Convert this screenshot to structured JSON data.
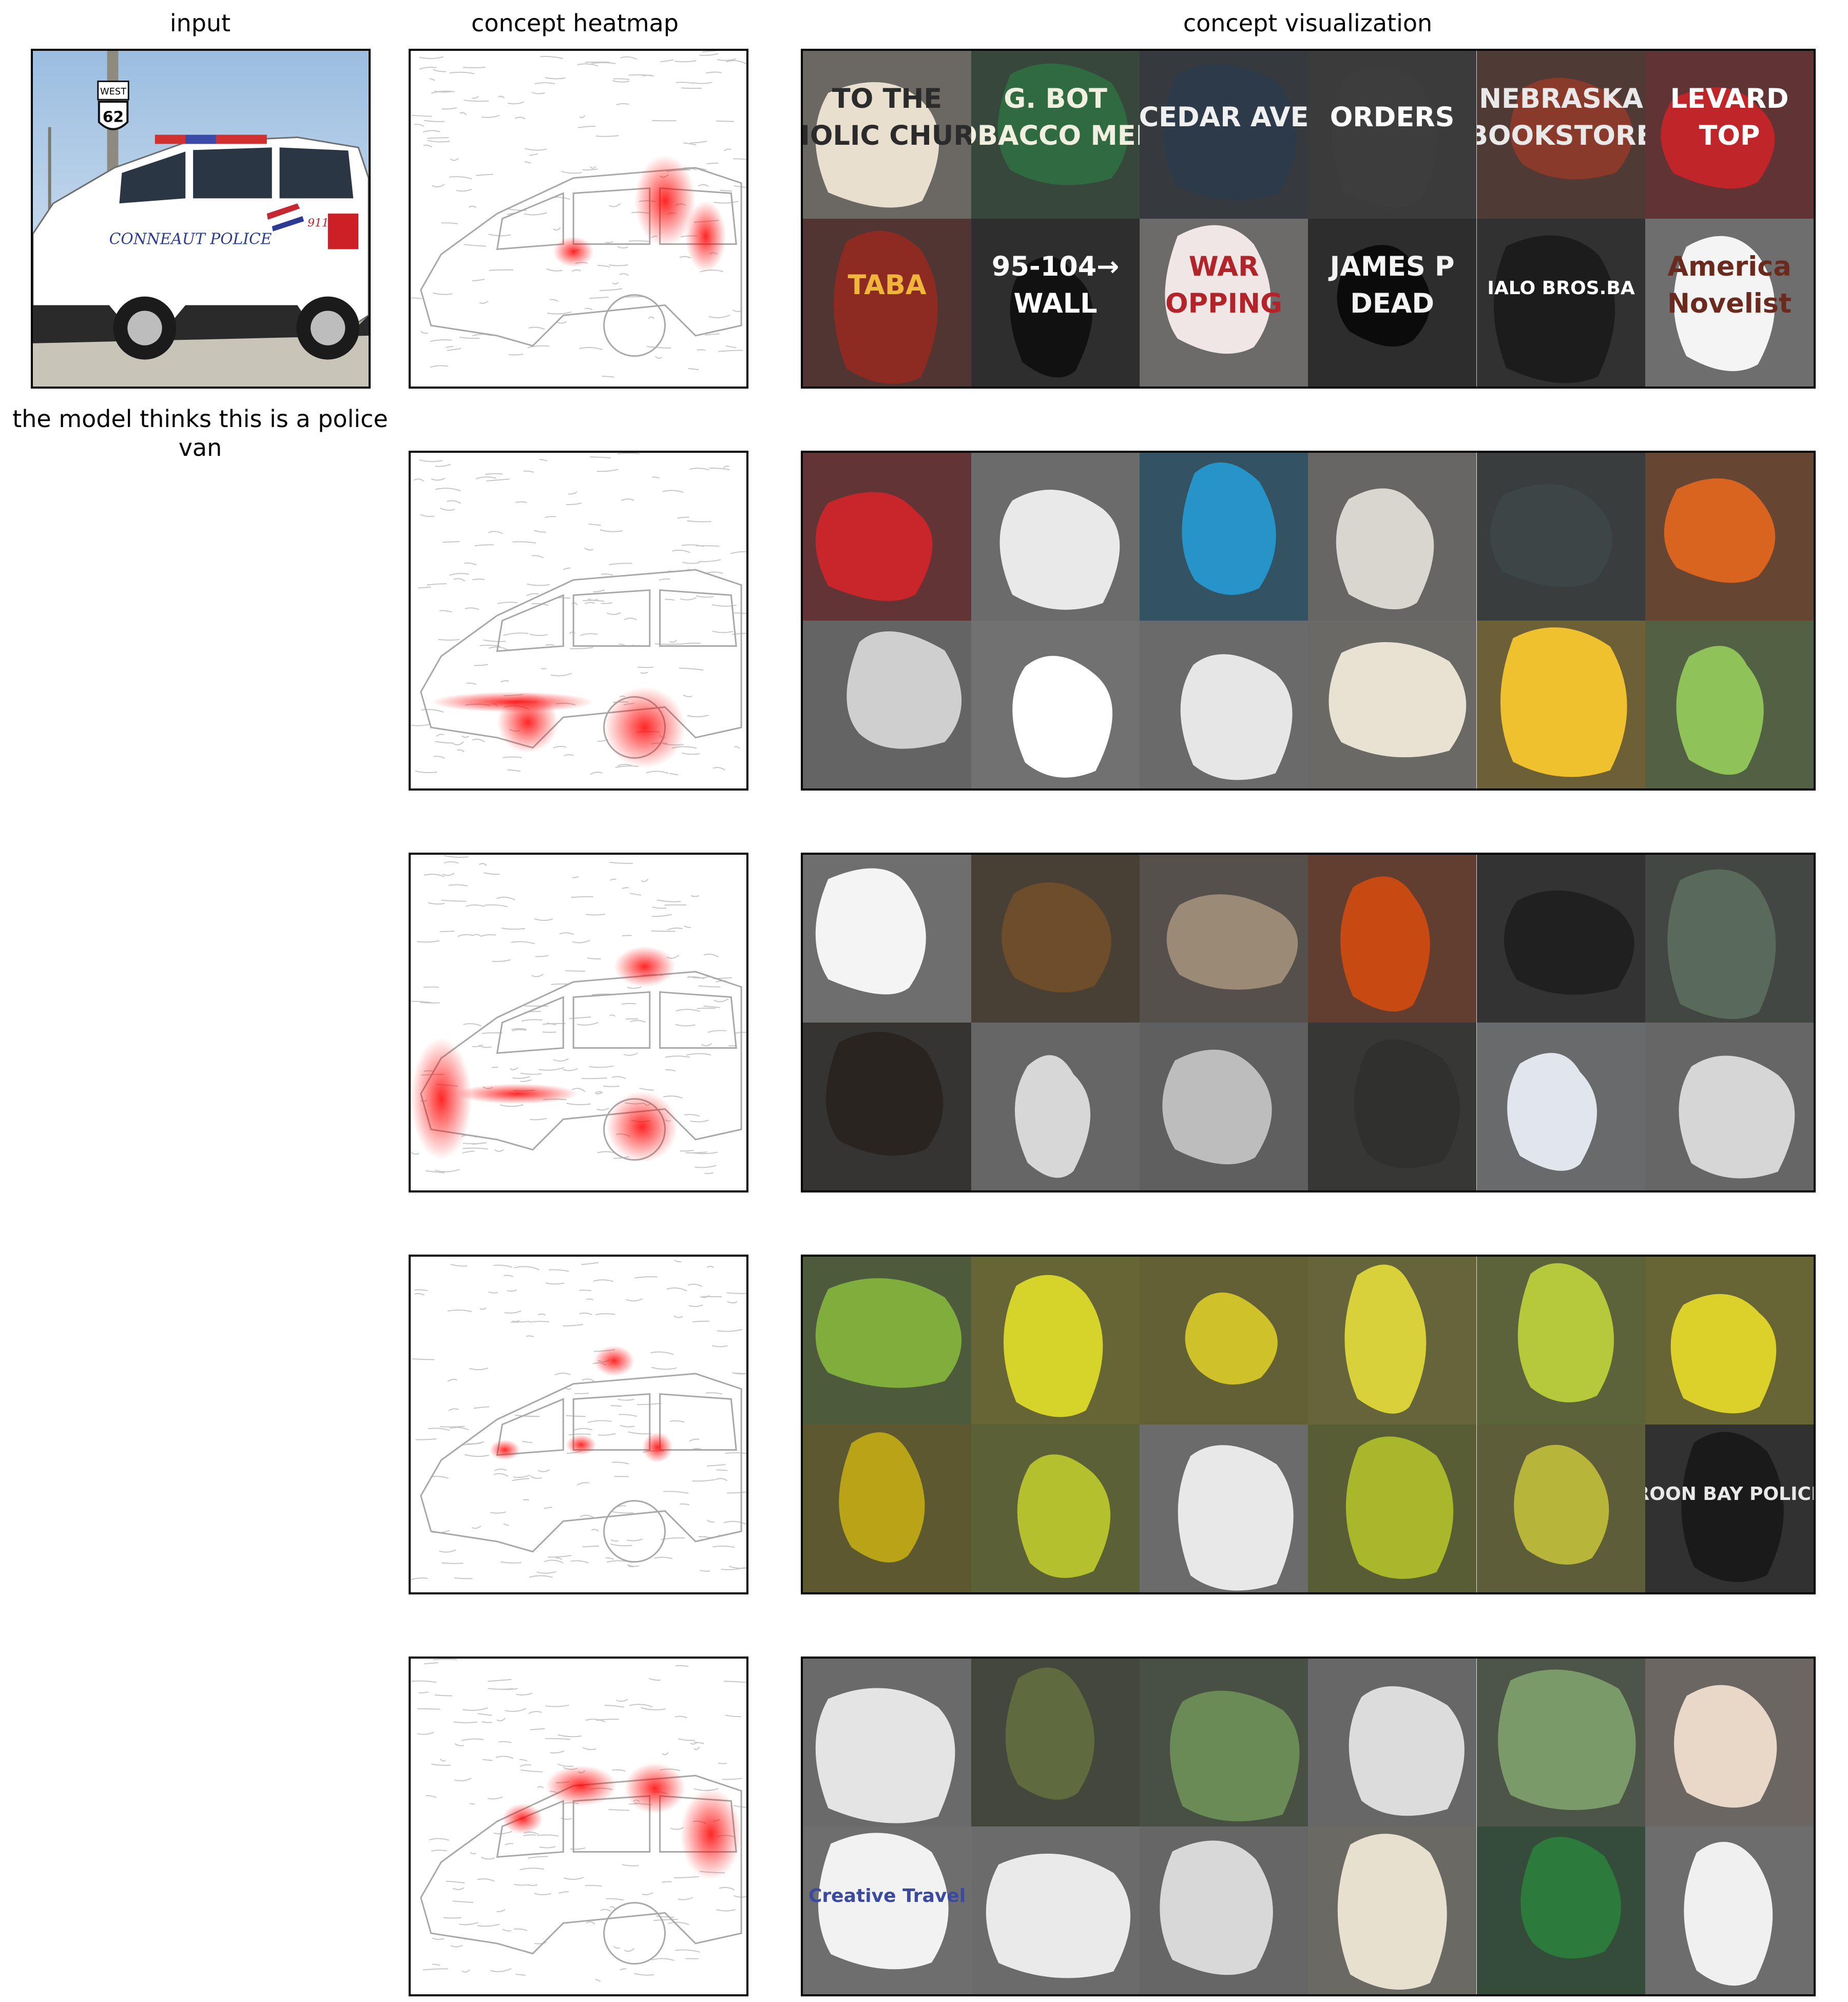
{
  "figure": {
    "column_titles": {
      "input": "input",
      "heatmap": "concept heatmap",
      "visualization": "concept visualization"
    },
    "prediction_caption": "the model thinks this is a police van",
    "input_image": {
      "description_icon": "police-suv-photo-icon",
      "door_text": "CONNEAUT POLICE",
      "sign_top": "WEST",
      "sign_number": "62",
      "door_num": "911"
    },
    "colors": {
      "heat": "#ff0000",
      "frame": "#000000",
      "mask_dark": "#3a3a3a"
    },
    "concepts": [
      {
        "id": "text-signs",
        "heat_focus": "rear-window-and-tail",
        "tiles": [
          {
            "bg": "#e8dfcf",
            "fg": "#2b2b2b",
            "text": "TO THE\nIOLIC CHUR"
          },
          {
            "bg": "#2f6a40",
            "fg": "#f0efe0",
            "text": "G. BOT\nOBACCO MER"
          },
          {
            "bg": "#2c3a4a",
            "fg": "#f0f0f0",
            "text": "CEDAR AVE"
          },
          {
            "bg": "#3d3d3d",
            "fg": "#ffffff",
            "text": "ORDERS"
          },
          {
            "bg": "#8a3a2a",
            "fg": "#e9e9e9",
            "text": "NEBRASKA\nBOOKSTORE"
          },
          {
            "bg": "#c0252a",
            "fg": "#ffffff",
            "text": "LEVARD\nTOP"
          },
          {
            "bg": "#8d2a22",
            "fg": "#f0b63a",
            "text": "TABA"
          },
          {
            "bg": "#111111",
            "fg": "#ffffff",
            "text": "95-104→\nWALL"
          },
          {
            "bg": "#f1e6e6",
            "fg": "#b3232a",
            "text": "WAR\nOPPING"
          },
          {
            "bg": "#0b0b0b",
            "fg": "#f3f3f3",
            "text": "JAMES P\nDEAD"
          },
          {
            "bg": "#1c1c1c",
            "fg": "#ffffff",
            "text": "IALO BROS.BA"
          },
          {
            "bg": "#f4f4f4",
            "fg": "#6b2a1e",
            "text": "America\nNovelist"
          }
        ]
      },
      {
        "id": "car-wheels",
        "heat_focus": "front-wheel",
        "tiles": [
          {
            "bg": "#c9262c",
            "fg": "#222",
            "text": ""
          },
          {
            "bg": "#e9e9e9",
            "fg": "#222",
            "text": ""
          },
          {
            "bg": "#2794c9",
            "fg": "#222",
            "text": ""
          },
          {
            "bg": "#d9d6cf",
            "fg": "#222",
            "text": ""
          },
          {
            "bg": "#3c4647",
            "fg": "#111",
            "text": ""
          },
          {
            "bg": "#d86420",
            "fg": "#222",
            "text": ""
          },
          {
            "bg": "#cfcfcf",
            "fg": "#222",
            "text": ""
          },
          {
            "bg": "#ffffff",
            "fg": "#222",
            "text": ""
          },
          {
            "bg": "#e6e6e6",
            "fg": "#222",
            "text": ""
          },
          {
            "bg": "#e8e2d2",
            "fg": "#222",
            "text": ""
          },
          {
            "bg": "#efc12f",
            "fg": "#222",
            "text": ""
          },
          {
            "bg": "#8fc35a",
            "fg": "#222",
            "text": ""
          }
        ]
      },
      {
        "id": "horizontal-bars",
        "heat_focus": "front-bumper",
        "tiles": [
          {
            "bg": "#f4f4f4",
            "fg": "#222",
            "text": ""
          },
          {
            "bg": "#6e4d2a",
            "fg": "#222",
            "text": ""
          },
          {
            "bg": "#9a8a76",
            "fg": "#222",
            "text": ""
          },
          {
            "bg": "#c74a12",
            "fg": "#222",
            "text": ""
          },
          {
            "bg": "#202020",
            "fg": "#222",
            "text": ""
          },
          {
            "bg": "#5a6a5a",
            "fg": "#222",
            "text": ""
          },
          {
            "bg": "#2a2420",
            "fg": "#222",
            "text": ""
          },
          {
            "bg": "#d7d7d7",
            "fg": "#222",
            "text": ""
          },
          {
            "bg": "#bdbdbd",
            "fg": "#222",
            "text": ""
          },
          {
            "bg": "#30302e",
            "fg": "#222",
            "text": ""
          },
          {
            "bg": "#e0e6ec",
            "fg": "#222",
            "text": ""
          },
          {
            "bg": "#d6d6d6",
            "fg": "#222",
            "text": ""
          }
        ]
      },
      {
        "id": "yellow-fields",
        "heat_focus": "door-handles",
        "tiles": [
          {
            "bg": "#7fae3d",
            "fg": "#222",
            "text": ""
          },
          {
            "bg": "#d6d42a",
            "fg": "#222",
            "text": ""
          },
          {
            "bg": "#cfc12a",
            "fg": "#222",
            "text": ""
          },
          {
            "bg": "#d8d13a",
            "fg": "#222",
            "text": ""
          },
          {
            "bg": "#b5c93a",
            "fg": "#222",
            "text": ""
          },
          {
            "bg": "#dcd02a",
            "fg": "#222",
            "text": ""
          },
          {
            "bg": "#b9a418",
            "fg": "#222",
            "text": ""
          },
          {
            "bg": "#b4c02e",
            "fg": "#222",
            "text": ""
          },
          {
            "bg": "#e8e8e8",
            "fg": "#222",
            "text": ""
          },
          {
            "bg": "#a8b82a",
            "fg": "#222",
            "text": ""
          },
          {
            "bg": "#b7b63a",
            "fg": "#222",
            "text": ""
          },
          {
            "bg": "#1a1a1a",
            "fg": "#e8e8e8",
            "text": "ROON BAY POLICE"
          }
        ]
      },
      {
        "id": "white-vehicles-birds",
        "heat_focus": "upper-body",
        "tiles": [
          {
            "bg": "#e4e4e4",
            "fg": "#222",
            "text": ""
          },
          {
            "bg": "#5f6a3e",
            "fg": "#222",
            "text": ""
          },
          {
            "bg": "#6a8a56",
            "fg": "#222",
            "text": ""
          },
          {
            "bg": "#dcdcdc",
            "fg": "#222",
            "text": ""
          },
          {
            "bg": "#7a9a6a",
            "fg": "#222",
            "text": ""
          },
          {
            "bg": "#e9d8c8",
            "fg": "#222",
            "text": ""
          },
          {
            "bg": "#f2f2f2",
            "fg": "#3a4aa0",
            "text": "Creative Travel"
          },
          {
            "bg": "#eaeaea",
            "fg": "#222",
            "text": ""
          },
          {
            "bg": "#d8d8d8",
            "fg": "#222",
            "text": ""
          },
          {
            "bg": "#e8e0cf",
            "fg": "#222",
            "text": ""
          },
          {
            "bg": "#2d7a3d",
            "fg": "#222",
            "text": ""
          },
          {
            "bg": "#f0f0f0",
            "fg": "#222",
            "text": ""
          }
        ]
      }
    ]
  }
}
